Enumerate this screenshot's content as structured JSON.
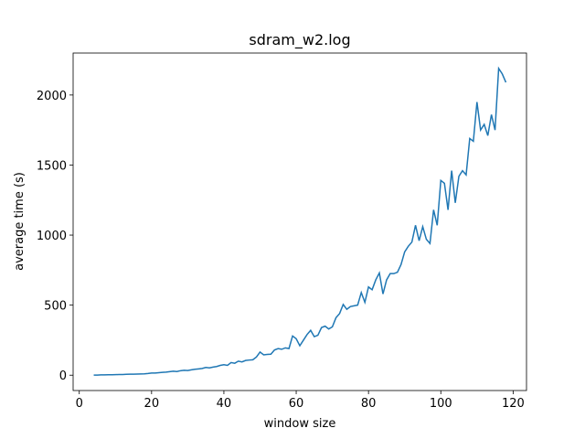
{
  "chart_data": {
    "type": "line",
    "title": "sdram_w2.log",
    "xlabel": "window size",
    "ylabel": "average time (s)",
    "x": [
      4,
      5,
      6,
      7,
      8,
      9,
      10,
      11,
      12,
      13,
      14,
      15,
      16,
      17,
      18,
      19,
      20,
      21,
      22,
      23,
      24,
      25,
      26,
      27,
      28,
      29,
      30,
      31,
      32,
      33,
      34,
      35,
      36,
      37,
      38,
      39,
      40,
      41,
      42,
      43,
      44,
      45,
      46,
      47,
      48,
      49,
      50,
      51,
      52,
      53,
      54,
      55,
      56,
      57,
      58,
      59,
      60,
      61,
      62,
      63,
      64,
      65,
      66,
      67,
      68,
      69,
      70,
      71,
      72,
      73,
      74,
      75,
      76,
      77,
      78,
      79,
      80,
      81,
      82,
      83,
      84,
      85,
      86,
      87,
      88,
      89,
      90,
      91,
      92,
      93,
      94,
      95,
      96,
      97,
      98,
      99,
      100,
      101,
      102,
      103,
      104,
      105,
      106,
      107,
      108,
      109,
      110,
      111,
      112,
      113,
      114,
      115,
      116,
      117,
      118
    ],
    "series": [
      {
        "name": "sdram_w2.log",
        "color": "#1f77b4",
        "values": [
          1,
          1,
          2,
          2,
          3,
          3,
          4,
          5,
          5,
          6,
          7,
          7,
          8,
          9,
          10,
          12,
          15,
          15,
          18,
          20,
          22,
          25,
          28,
          26,
          32,
          35,
          33,
          38,
          42,
          45,
          48,
          55,
          52,
          58,
          62,
          70,
          75,
          70,
          90,
          85,
          100,
          95,
          105,
          108,
          110,
          130,
          165,
          145,
          148,
          150,
          180,
          190,
          185,
          195,
          190,
          280,
          260,
          210,
          250,
          290,
          320,
          275,
          285,
          340,
          350,
          330,
          345,
          410,
          440,
          505,
          470,
          490,
          495,
          500,
          590,
          520,
          630,
          610,
          680,
          730,
          580,
          680,
          725,
          725,
          735,
          790,
          880,
          920,
          950,
          1070,
          960,
          1060,
          970,
          940,
          1180,
          1070,
          1390,
          1370,
          1180,
          1460,
          1230,
          1420,
          1460,
          1430,
          1690,
          1670,
          1950,
          1750,
          1790,
          1710,
          1860,
          1750,
          2190,
          2150,
          2090
        ]
      }
    ],
    "xlim": [
      -1.7,
      123.7
    ],
    "ylim": [
      -109.5,
      2299.5
    ],
    "xticks": [
      0,
      20,
      40,
      60,
      80,
      100,
      120
    ],
    "yticks": [
      0,
      500,
      1000,
      1500,
      2000
    ]
  }
}
